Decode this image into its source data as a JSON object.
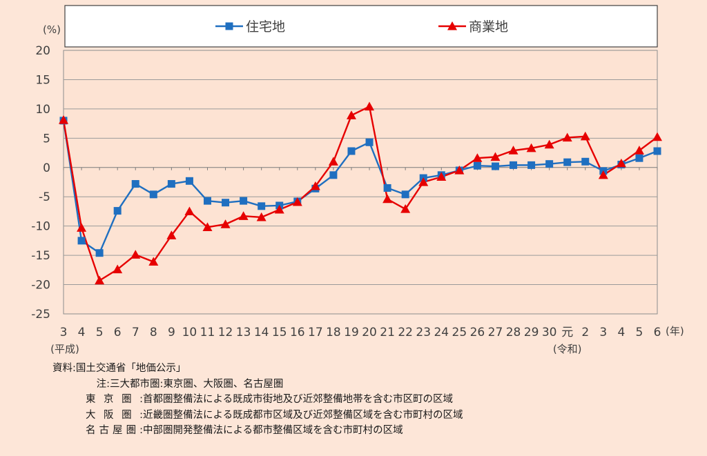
{
  "chart_data": {
    "type": "line",
    "unit_label": "(%)",
    "x_suffix": "(年)",
    "categories": [
      "3",
      "4",
      "5",
      "6",
      "7",
      "8",
      "9",
      "10",
      "11",
      "12",
      "13",
      "14",
      "15",
      "16",
      "17",
      "18",
      "19",
      "20",
      "21",
      "22",
      "23",
      "24",
      "25",
      "26",
      "27",
      "28",
      "29",
      "30",
      "元",
      "2",
      "3",
      "4",
      "5",
      "6"
    ],
    "era_labels": [
      {
        "index": 0,
        "text": "(平成)"
      },
      {
        "index": 28,
        "text": "(令和)"
      }
    ],
    "ylim": [
      -25,
      20
    ],
    "yticks": [
      20,
      15,
      10,
      5,
      0,
      -5,
      -10,
      -15,
      -20,
      -25
    ],
    "grid": true,
    "legend_position": "top",
    "series": [
      {
        "name": "住宅地",
        "color": "#1f6fc0",
        "marker": "square",
        "values": [
          8.0,
          -12.5,
          -14.6,
          -7.4,
          -2.8,
          -4.6,
          -2.8,
          -2.3,
          -5.7,
          -6.0,
          -5.7,
          -6.6,
          -6.5,
          -5.8,
          -3.6,
          -1.3,
          2.8,
          4.3,
          -3.5,
          -4.6,
          -1.8,
          -1.3,
          -0.5,
          0.3,
          0.2,
          0.4,
          0.4,
          0.6,
          0.9,
          1.0,
          -0.6,
          0.5,
          1.6,
          2.8
        ]
      },
      {
        "name": "商業地",
        "color": "#e60000",
        "marker": "triangle",
        "values": [
          8.1,
          -10.3,
          -19.3,
          -17.4,
          -14.9,
          -16.1,
          -11.6,
          -7.5,
          -10.2,
          -9.7,
          -8.3,
          -8.5,
          -7.2,
          -5.9,
          -3.2,
          1.0,
          8.9,
          10.4,
          -5.4,
          -7.1,
          -2.5,
          -1.6,
          -0.5,
          1.6,
          1.8,
          2.9,
          3.3,
          3.9,
          5.1,
          5.3,
          -1.3,
          0.7,
          2.9,
          5.2
        ]
      }
    ]
  },
  "notes": [
    {
      "label": "資料:",
      "text": "国土交通省「地価公示」"
    },
    {
      "label": "注:",
      "text": "三大都市圏:東京圏、大阪圏、名古屋圏"
    },
    {
      "label": "東京圏:",
      "text": "首都圏整備法による既成市街地及び近郊整備地帯を含む市区町の区域"
    },
    {
      "label": "大阪圏:",
      "text": "近畿圏整備法による既成都市区域及び近郊整備区域を含む市町村の区域"
    },
    {
      "label": "名古屋圏:",
      "text": "中部圏開発整備法による都市整備区域を含む市町村の区域"
    }
  ]
}
